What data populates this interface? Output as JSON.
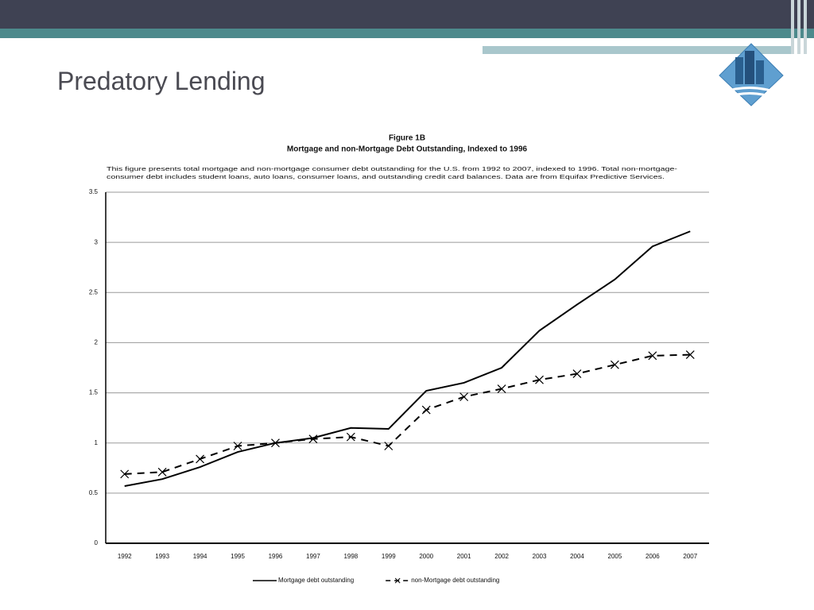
{
  "slide_title": "Predatory Lending",
  "chart_data": {
    "type": "line",
    "title": "Figure 1B",
    "subtitle": "Mortgage and non-Mortgage Debt Outstanding, Indexed to 1996",
    "description": [
      "This figure presents total mortgage and non-mortgage consumer debt outstanding for the U.S. from 1992 to 2007, indexed to 1996. Total non-mortgage-",
      "consumer debt includes student loans, auto loans, consumer loans, and outstanding credit card balances. Data are from Equifax Predictive Services."
    ],
    "categories": [
      "1992",
      "1993",
      "1994",
      "1995",
      "1996",
      "1997",
      "1998",
      "1999",
      "2000",
      "2001",
      "2002",
      "2003",
      "2004",
      "2005",
      "2006",
      "2007"
    ],
    "series": [
      {
        "name": "Mortgage debt outstanding",
        "color": "#000000",
        "dashed": false,
        "marker": false,
        "values": [
          0.57,
          0.64,
          0.76,
          0.91,
          1.0,
          1.05,
          1.15,
          1.14,
          1.52,
          1.6,
          1.75,
          2.12,
          2.38,
          2.63,
          2.96,
          3.11
        ]
      },
      {
        "name": "non-Mortgage debt outstanding",
        "color": "#000000",
        "dashed": true,
        "marker": true,
        "values": [
          0.69,
          0.71,
          0.84,
          0.97,
          1.0,
          1.04,
          1.06,
          0.97,
          1.33,
          1.46,
          1.54,
          1.63,
          1.69,
          1.78,
          1.87,
          1.88
        ]
      }
    ],
    "ylim": [
      0,
      3.5
    ],
    "yticks": [
      0,
      0.5,
      1,
      1.5,
      2,
      2.5,
      3,
      3.5
    ],
    "grid": true
  }
}
